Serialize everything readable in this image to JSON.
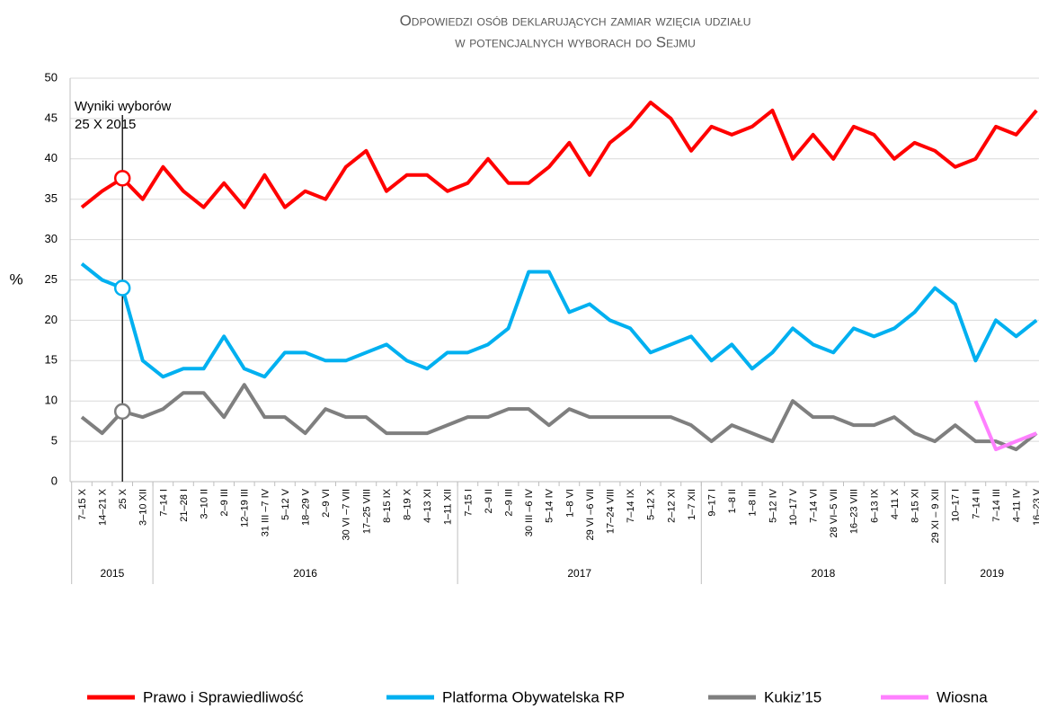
{
  "chart_data": {
    "type": "line",
    "title": [
      "Odpowiedzi osób deklarujących zamiar wzięcia udziału",
      "w potencjalnych wyborach do Sejmu"
    ],
    "y_label": "%",
    "annotation": {
      "lines": [
        "Wyniki wyborów",
        "25 X 2015"
      ],
      "index": 2
    },
    "categories": [
      "7–15 X",
      "14–21 X",
      "25  X",
      "3–10 XII",
      "7–14 I",
      "21–28 I",
      "3–10 II",
      "2–9 III",
      "12–19 III",
      "31 III  –7 IV",
      "5–12 V",
      "18–29 V",
      "2–9 VI",
      "30 VI –7 VII",
      "17–25 VIII",
      "8–15 IX",
      "8–19 X",
      "4–13 XI",
      "1–11 XII",
      "7–15 I",
      "2–9 II",
      "2–9 III",
      "30 III –6 IV",
      "5–14 IV",
      "1–8 VI",
      "29 VI –6 VII",
      "17–24 VIII",
      "7–14 IX",
      "5–12 X",
      "2–12 XI",
      "1–7 XII",
      "9–17 I",
      "1–8 II",
      "1–8 III",
      "5–12 IV",
      "10–17 V",
      "7–14 VI",
      "28 VI–5 VII",
      "16–23 VIII",
      "6–13 IX",
      "4–11 X",
      "8–15 XI",
      "29 XI – 9 XII",
      "10–17 I",
      "7–14 II",
      "7–14 III",
      "4–11 IV",
      "16–23 V"
    ],
    "year_groups": [
      {
        "label": "2015",
        "from": 0,
        "to": 3
      },
      {
        "label": "2016",
        "from": 4,
        "to": 18
      },
      {
        "label": "2017",
        "from": 19,
        "to": 30
      },
      {
        "label": "2018",
        "from": 31,
        "to": 42
      },
      {
        "label": "2019",
        "from": 43,
        "to": 47
      }
    ],
    "series": [
      {
        "name": "Prawo i Sprawiedliwość",
        "color": "#ff0000",
        "values": [
          34,
          36,
          37.6,
          35,
          39,
          36,
          34,
          37,
          34,
          38,
          34,
          36,
          35,
          39,
          41,
          36,
          38,
          38,
          36,
          37,
          40,
          37,
          37,
          39,
          42,
          38,
          42,
          44,
          47,
          45,
          41,
          44,
          43,
          44,
          46,
          40,
          43,
          40,
          44,
          43,
          40,
          42,
          41,
          39,
          40,
          44,
          43,
          46
        ]
      },
      {
        "name": "Platforma Obywatelska RP",
        "color": "#00b0f0",
        "values": [
          27,
          25,
          24,
          15,
          13,
          14,
          14,
          18,
          14,
          13,
          16,
          16,
          15,
          15,
          16,
          17,
          15,
          14,
          16,
          16,
          17,
          19,
          26,
          26,
          21,
          22,
          20,
          19,
          16,
          17,
          18,
          15,
          17,
          14,
          16,
          19,
          17,
          16,
          19,
          18,
          19,
          21,
          24,
          22,
          15,
          20,
          18,
          20
        ]
      },
      {
        "name": "Kukiz’15",
        "color": "#7f7f7f",
        "values": [
          8,
          6,
          8.7,
          8,
          9,
          11,
          11,
          8,
          12,
          8,
          8,
          6,
          9,
          8,
          8,
          6,
          6,
          6,
          7,
          8,
          8,
          9,
          9,
          7,
          9,
          8,
          8,
          8,
          8,
          8,
          7,
          5,
          7,
          6,
          5,
          10,
          8,
          8,
          7,
          7,
          8,
          6,
          5,
          7,
          5,
          5,
          4,
          6
        ]
      },
      {
        "name": "Wiosna",
        "color": "#ff80ff",
        "values": [
          null,
          null,
          null,
          null,
          null,
          null,
          null,
          null,
          null,
          null,
          null,
          null,
          null,
          null,
          null,
          null,
          null,
          null,
          null,
          null,
          null,
          null,
          null,
          null,
          null,
          null,
          null,
          null,
          null,
          null,
          null,
          null,
          null,
          null,
          null,
          null,
          null,
          null,
          null,
          null,
          null,
          null,
          null,
          null,
          10,
          4,
          5,
          6
        ]
      }
    ],
    "ylim": [
      0,
      50
    ],
    "yticks": [
      0,
      5,
      10,
      15,
      20,
      25,
      30,
      35,
      40,
      45,
      50
    ],
    "grid": true
  }
}
